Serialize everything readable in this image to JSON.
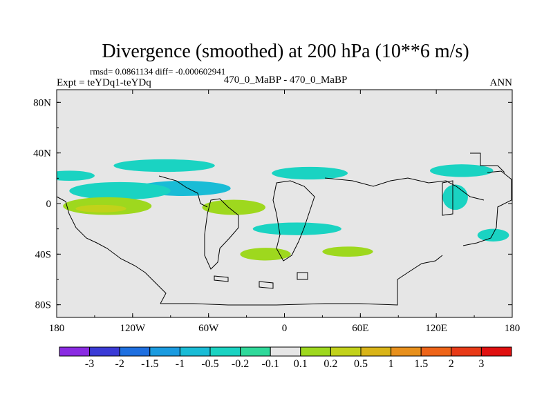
{
  "chart_data": {
    "type": "heatmap",
    "title": "Divergence (smoothed) at 200 hPa (10**6 m/s)",
    "stats": "rmsd= 0.0861134 diff= -0.000602941",
    "experiment": "Expt = teYDq1-teYDq",
    "case": "470_0_MaBP - 470_0_MaBP",
    "season": "ANN",
    "x_ticks": [
      "180",
      "120W",
      "60W",
      "0",
      "60E",
      "120E",
      "180"
    ],
    "y_ticks": [
      "80N",
      "40N",
      "0",
      "40S",
      "80S"
    ],
    "xlim": [
      -180,
      180
    ],
    "ylim": [
      -90,
      90
    ],
    "colorbar": {
      "labels": [
        "-3",
        "-2",
        "-1.5",
        "-1",
        "-0.5",
        "-0.2",
        "-0.1",
        "0.1",
        "0.2",
        "0.5",
        "1",
        "1.5",
        "2",
        "3"
      ],
      "colors": [
        "#8a2be2",
        "#3a3ad6",
        "#1e6fe0",
        "#1a9be0",
        "#19bcd6",
        "#1ad3c2",
        "#2fd99a",
        "#e6e6e6",
        "#9ed81e",
        "#c2d21a",
        "#d9b417",
        "#e8901c",
        "#ee6418",
        "#e83a17",
        "#e01010"
      ]
    },
    "regions": [
      {
        "name": "north-band-1",
        "level": -0.2,
        "lon": -170,
        "lat": 22,
        "w": 40,
        "h": 8
      },
      {
        "name": "north-band-2",
        "level": -0.2,
        "lon": -95,
        "lat": 30,
        "w": 80,
        "h": 10
      },
      {
        "name": "north-band-3",
        "level": -0.2,
        "lon": 20,
        "lat": 24,
        "w": 60,
        "h": 10
      },
      {
        "name": "north-band-4",
        "level": -0.2,
        "lon": 140,
        "lat": 26,
        "w": 50,
        "h": 10
      },
      {
        "name": "tropical-pacific",
        "level": -0.5,
        "lon": -80,
        "lat": 12,
        "w": 75,
        "h": 12
      },
      {
        "name": "tropical-band",
        "level": -0.2,
        "lon": -130,
        "lat": 10,
        "w": 80,
        "h": 14
      },
      {
        "name": "equator-west",
        "level": 0.2,
        "lon": -140,
        "lat": -2,
        "w": 70,
        "h": 14
      },
      {
        "name": "equator-core",
        "level": 0.5,
        "lon": -145,
        "lat": -4,
        "w": 40,
        "h": 6
      },
      {
        "name": "atlantic-pos",
        "level": 0.2,
        "lon": -40,
        "lat": -3,
        "w": 50,
        "h": 12
      },
      {
        "name": "south-band-1",
        "level": 0.2,
        "lon": -15,
        "lat": -40,
        "w": 40,
        "h": 10
      },
      {
        "name": "south-band-2",
        "level": 0.2,
        "lon": 50,
        "lat": -38,
        "w": 40,
        "h": 8
      },
      {
        "name": "south-band-3",
        "level": -0.2,
        "lon": 10,
        "lat": -20,
        "w": 70,
        "h": 10
      },
      {
        "name": "east-pacific",
        "level": -0.2,
        "lon": 165,
        "lat": -25,
        "w": 25,
        "h": 10
      },
      {
        "name": "east-pacific-2",
        "level": -0.2,
        "lon": 135,
        "lat": 5,
        "w": 20,
        "h": 20
      }
    ]
  }
}
